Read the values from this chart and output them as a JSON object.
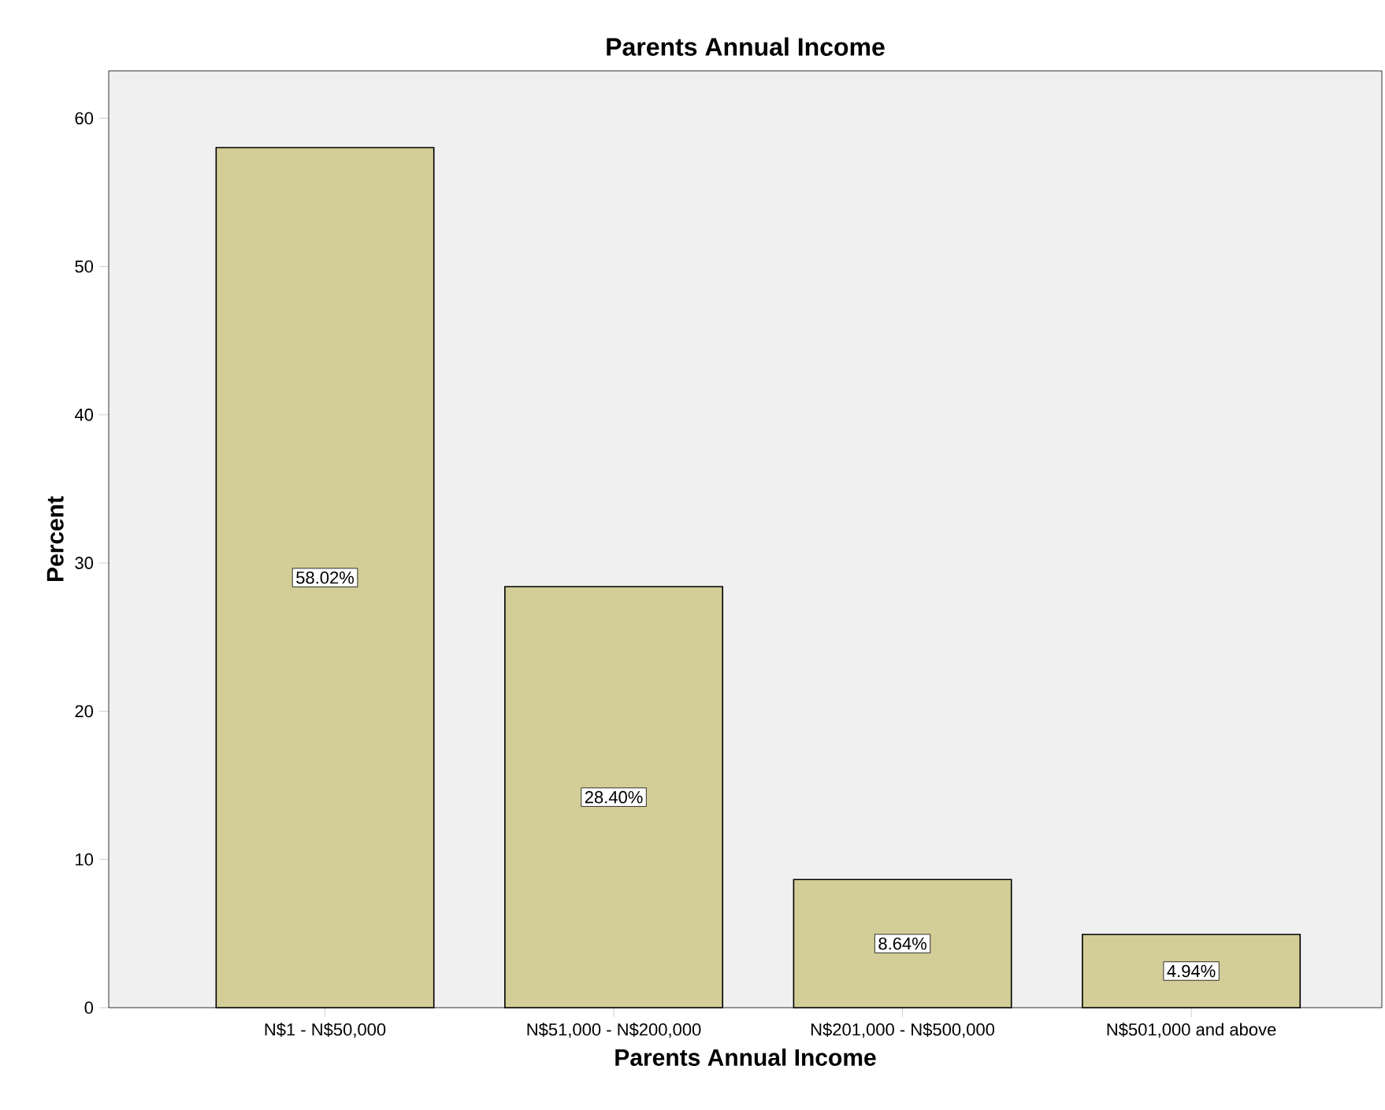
{
  "chart_data": {
    "type": "bar",
    "title": "Parents Annual Income",
    "xlabel": "Parents Annual Income",
    "ylabel": "Percent",
    "categories": [
      "N$1 - N$50,000",
      "N$51,000 - N$200,000",
      "N$201,000 - N$500,000",
      "N$501,000 and above"
    ],
    "values": [
      58.02,
      28.4,
      8.64,
      4.94
    ],
    "value_labels": [
      "58.02%",
      "28.40%",
      "8.64%",
      "4.94%"
    ],
    "color": "#d3ce97",
    "ylim": [
      0,
      63.2
    ],
    "yticks": [
      0,
      10,
      20,
      30,
      40,
      50,
      60
    ],
    "grid": false
  }
}
